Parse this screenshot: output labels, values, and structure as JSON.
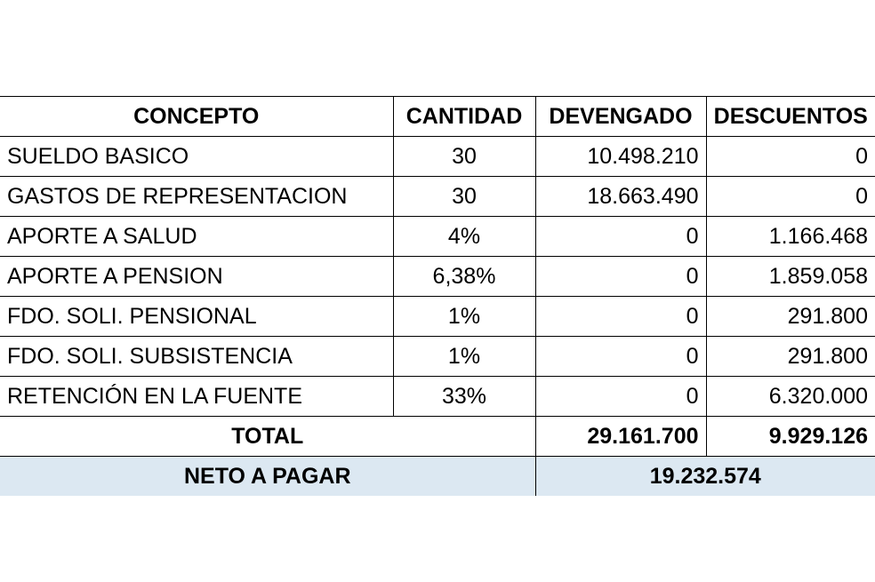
{
  "table": {
    "headers": [
      "CONCEPTO",
      "CANTIDAD",
      "DEVENGADO",
      "DESCUENTOS"
    ],
    "rows": [
      {
        "concepto": "SUELDO BASICO",
        "cantidad": "30",
        "devengado": "10.498.210",
        "descuentos": "0"
      },
      {
        "concepto": "GASTOS DE REPRESENTACION",
        "cantidad": "30",
        "devengado": "18.663.490",
        "descuentos": "0"
      },
      {
        "concepto": "APORTE A SALUD",
        "cantidad": "4%",
        "devengado": "0",
        "descuentos": "1.166.468"
      },
      {
        "concepto": "APORTE A PENSION",
        "cantidad": "6,38%",
        "devengado": "0",
        "descuentos": "1.859.058"
      },
      {
        "concepto": "FDO. SOLI. PENSIONAL",
        "cantidad": "1%",
        "devengado": "0",
        "descuentos": "291.800"
      },
      {
        "concepto": "FDO. SOLI. SUBSISTENCIA",
        "cantidad": "1%",
        "devengado": "0",
        "descuentos": "291.800"
      },
      {
        "concepto": "RETENCIÓN EN LA FUENTE",
        "cantidad": "33%",
        "devengado": "0",
        "descuentos": "6.320.000"
      }
    ],
    "total": {
      "label": "TOTAL",
      "devengado": "29.161.700",
      "descuentos": "9.929.126"
    },
    "net": {
      "label": "NETO A PAGAR",
      "value": "19.232.574"
    }
  },
  "colors": {
    "net_row_background": "#dce8f2"
  }
}
